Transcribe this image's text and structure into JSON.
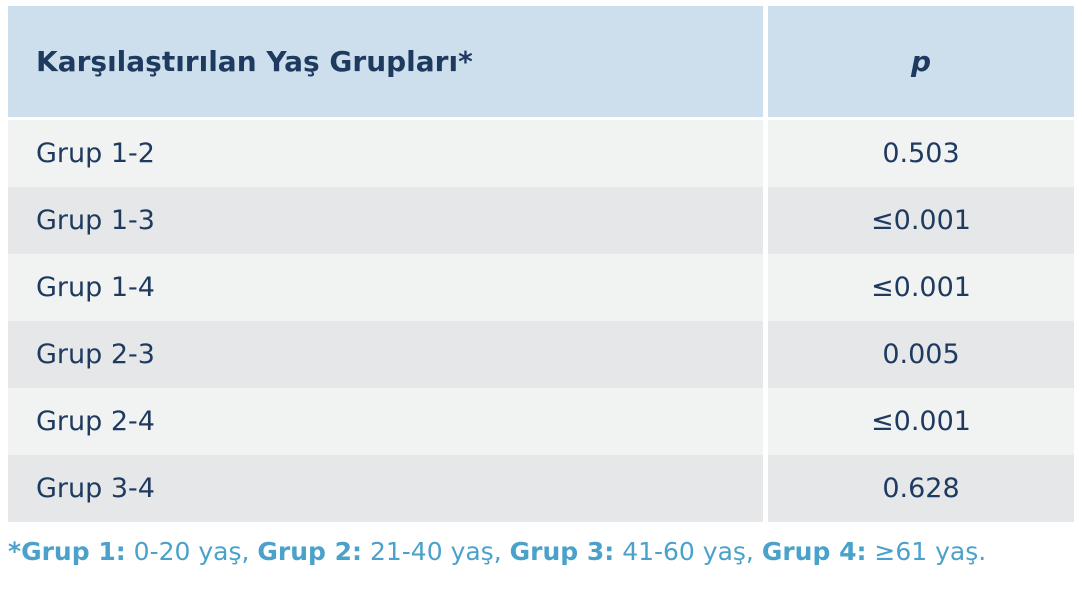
{
  "table": {
    "header": {
      "groups_label": "Karşılaştırılan Yaş Grupları*",
      "p_label": "p"
    },
    "rows": [
      {
        "group": "Grup 1-2",
        "p": "0.503"
      },
      {
        "group": "Grup 1-3",
        "p": "≤0.001"
      },
      {
        "group": "Grup 1-4",
        "p": "≤0.001"
      },
      {
        "group": "Grup 2-3",
        "p": "0.005"
      },
      {
        "group": "Grup 2-4",
        "p": "≤0.001"
      },
      {
        "group": "Grup 3-4",
        "p": "0.628"
      }
    ]
  },
  "footnote": {
    "segments": [
      {
        "text": "*Grup 1:"
      },
      {
        "text": " 0-20 yaş, "
      },
      {
        "text": "Grup 2:"
      },
      {
        "text": " 21-40 yaş, "
      },
      {
        "text": "Grup 3:"
      },
      {
        "text": " 41-60 yaş, "
      },
      {
        "text": "Grup 4:"
      },
      {
        "text": " ≥61 yaş."
      }
    ]
  },
  "colors": {
    "header_bg": "#cddfed",
    "row_light": "#f1f2f2",
    "row_dark": "#e5e7e9",
    "text_navy": "#1e3a5f",
    "footnote_blue": "#4aa2cb",
    "page_bg": "#ffffff"
  },
  "chart_data": {
    "type": "table",
    "title": "Karşılaştırılan Yaş Grupları*",
    "columns": [
      "Karşılaştırılan Yaş Grupları*",
      "p"
    ],
    "rows": [
      [
        "Grup 1-2",
        "0.503"
      ],
      [
        "Grup 1-3",
        "≤0.001"
      ],
      [
        "Grup 1-4",
        "≤0.001"
      ],
      [
        "Grup 2-3",
        "0.005"
      ],
      [
        "Grup 2-4",
        "≤0.001"
      ],
      [
        "Grup 3-4",
        "0.628"
      ]
    ],
    "footnote": "*Grup 1: 0-20 yaş, Grup 2: 21-40 yaş, Grup 3: 41-60 yaş, Grup 4: ≥61 yaş."
  }
}
